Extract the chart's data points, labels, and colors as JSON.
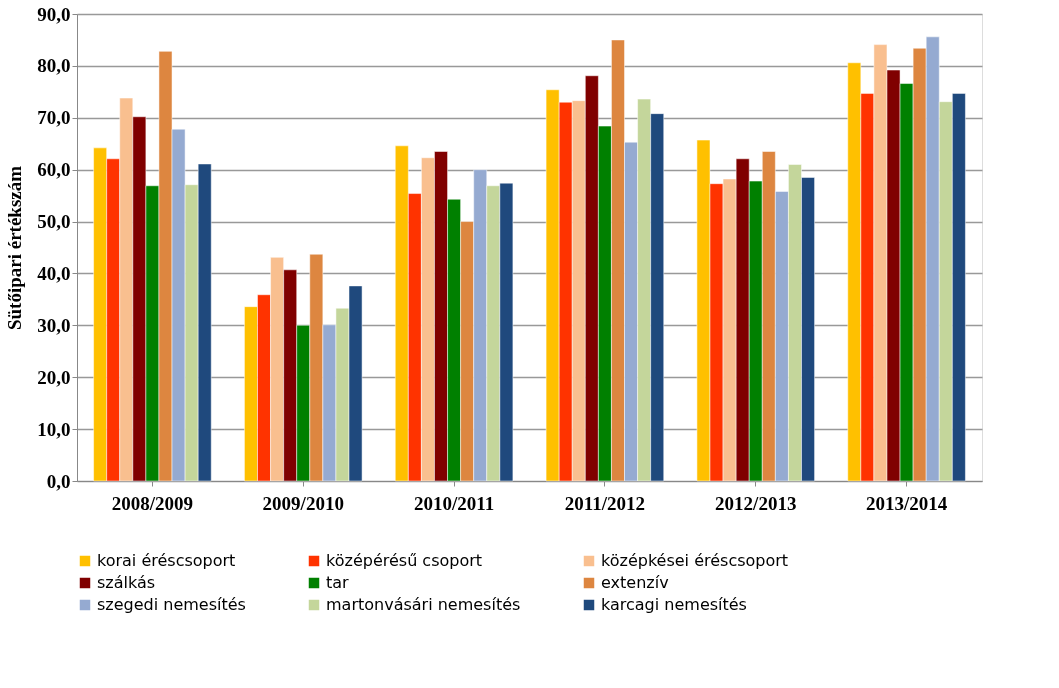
{
  "chart_data": {
    "type": "bar",
    "ylabel": "Sütőipari értékszám",
    "categories": [
      "2008/2009",
      "2009/2010",
      "2010/2011",
      "2011/2012",
      "2012/2013",
      "2013/2014"
    ],
    "series": [
      {
        "name": "korai éréscsoport",
        "color": "#ffc000",
        "values": [
          64.2,
          33.6,
          64.6,
          75.4,
          65.7,
          80.6
        ]
      },
      {
        "name": "középérésű csoport",
        "color": "#ff3300",
        "values": [
          62.1,
          35.9,
          55.4,
          73.0,
          57.3,
          74.7
        ]
      },
      {
        "name": "középkései éréscsoport",
        "color": "#f9bf8f",
        "values": [
          73.8,
          43.1,
          62.3,
          73.3,
          58.2,
          84.1
        ]
      },
      {
        "name": "szálkás",
        "color": "#800000",
        "values": [
          70.2,
          40.7,
          63.5,
          78.1,
          62.1,
          79.2
        ]
      },
      {
        "name": "tar",
        "color": "#008000",
        "values": [
          56.9,
          30.0,
          54.3,
          68.4,
          57.8,
          76.6
        ]
      },
      {
        "name": "extenzív",
        "color": "#dd8640",
        "values": [
          82.8,
          43.7,
          50.0,
          85.0,
          63.5,
          83.4
        ]
      },
      {
        "name": "szegedi nemesítés",
        "color": "#95aad1",
        "values": [
          67.8,
          30.1,
          60.0,
          65.3,
          55.8,
          85.6
        ]
      },
      {
        "name": "martonvásári nemesítés",
        "color": "#c4d69b",
        "values": [
          57.1,
          33.3,
          56.9,
          73.6,
          61.0,
          73.1
        ]
      },
      {
        "name": "karcagi nemesítés",
        "color": "#1f497d",
        "values": [
          61.1,
          37.6,
          57.4,
          70.8,
          58.5,
          74.7
        ]
      }
    ],
    "ylim": [
      0,
      90
    ],
    "yticks": [
      {
        "value": 0,
        "label": "0,0"
      },
      {
        "value": 10,
        "label": "10,0"
      },
      {
        "value": 20,
        "label": "20,0"
      },
      {
        "value": 30,
        "label": "30,0"
      },
      {
        "value": 40,
        "label": "40,0"
      },
      {
        "value": 50,
        "label": "50,0"
      },
      {
        "value": 60,
        "label": "60,0"
      },
      {
        "value": 70,
        "label": "70,0"
      },
      {
        "value": 80,
        "label": "80,0"
      },
      {
        "value": 90,
        "label": "90,0"
      }
    ],
    "grid": "y",
    "legend": "bottom"
  }
}
